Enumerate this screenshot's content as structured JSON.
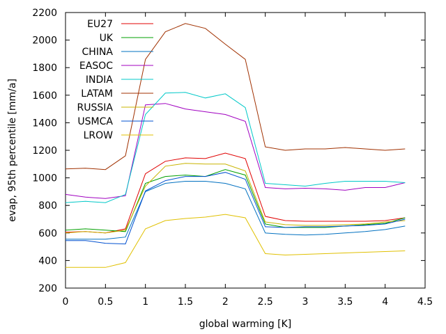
{
  "chart_data": {
    "type": "line",
    "title": "",
    "xlabel": "global warming [K]",
    "ylabel": "evap, 95th percentile [mm/a]",
    "xlim": [
      0,
      4.5
    ],
    "ylim": [
      200,
      2200
    ],
    "xticks": [
      0,
      0.5,
      1,
      1.5,
      2,
      2.5,
      3,
      3.5,
      4,
      4.5
    ],
    "xtick_labels": [
      "0",
      "0.5",
      "1",
      "1.5",
      "2",
      "2.5",
      "3",
      "3.5",
      "4",
      "4.5"
    ],
    "yticks": [
      200,
      400,
      600,
      800,
      1000,
      1200,
      1400,
      1600,
      1800,
      2000,
      2200
    ],
    "ytick_labels": [
      "200",
      "400",
      "600",
      "800",
      "1000",
      "1200",
      "1400",
      "1600",
      "1800",
      "2000",
      "2200"
    ],
    "grid": false,
    "legend_position": "top-left",
    "x": [
      0,
      0.25,
      0.5,
      0.75,
      1,
      1.25,
      1.5,
      1.75,
      2,
      2.25,
      2.5,
      2.75,
      3,
      3.25,
      3.5,
      3.75,
      4,
      4.25
    ],
    "series": [
      {
        "name": "EU27",
        "color": "#e00000",
        "values": [
          605,
          610,
          600,
          630,
          1030,
          1120,
          1145,
          1140,
          1180,
          1140,
          720,
          690,
          685,
          685,
          685,
          685,
          690,
          710
        ]
      },
      {
        "name": "UK",
        "color": "#00a000",
        "values": [
          620,
          630,
          620,
          610,
          960,
          1010,
          1020,
          1010,
          1060,
          1020,
          665,
          640,
          640,
          640,
          650,
          660,
          670,
          710
        ]
      },
      {
        "name": "CHINA",
        "color": "#0070c0",
        "values": [
          555,
          555,
          555,
          570,
          900,
          960,
          975,
          975,
          960,
          920,
          600,
          590,
          585,
          590,
          600,
          610,
          625,
          650
        ]
      },
      {
        "name": "EASOC",
        "color": "#a000c0",
        "values": [
          880,
          860,
          850,
          870,
          1530,
          1540,
          1500,
          1480,
          1460,
          1410,
          930,
          920,
          925,
          920,
          910,
          930,
          930,
          965
        ]
      },
      {
        "name": "INDIA",
        "color": "#00c8c8",
        "values": [
          820,
          830,
          820,
          880,
          1460,
          1615,
          1620,
          1580,
          1610,
          1510,
          960,
          950,
          940,
          960,
          975,
          975,
          975,
          965
        ]
      },
      {
        "name": "LATAM",
        "color": "#a03000",
        "values": [
          1065,
          1070,
          1060,
          1160,
          1860,
          2060,
          2120,
          2085,
          1970,
          1860,
          1225,
          1200,
          1210,
          1210,
          1220,
          1210,
          1200,
          1210
        ]
      },
      {
        "name": "RUSSIA",
        "color": "#c8b400",
        "values": [
          600,
          610,
          600,
          620,
          940,
          1085,
          1105,
          1100,
          1100,
          1050,
          680,
          660,
          655,
          655,
          660,
          665,
          680,
          690
        ]
      },
      {
        "name": "USMCA",
        "color": "#0050d0",
        "values": [
          545,
          545,
          525,
          520,
          905,
          980,
          1010,
          1010,
          1040,
          990,
          645,
          640,
          645,
          645,
          650,
          655,
          665,
          700
        ]
      },
      {
        "name": "LROW",
        "color": "#e0c000",
        "values": [
          350,
          350,
          350,
          385,
          630,
          690,
          705,
          715,
          735,
          710,
          450,
          440,
          445,
          450,
          455,
          460,
          465,
          470
        ]
      }
    ]
  }
}
